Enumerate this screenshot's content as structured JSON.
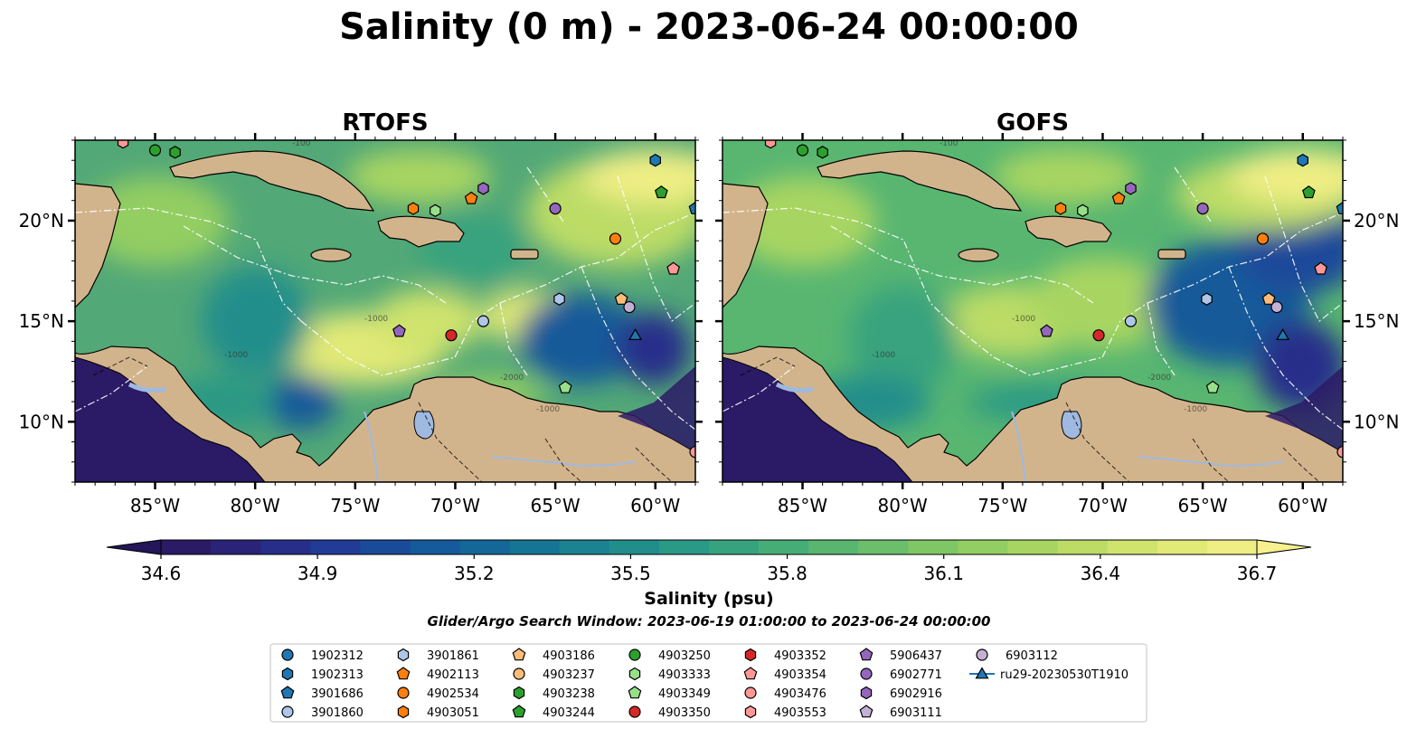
{
  "title": "Salinity (0 m) - 2023-06-24 00:00:00",
  "panels": [
    {
      "title": "RTOFS"
    },
    {
      "title": "GOFS"
    }
  ],
  "axes": {
    "lon_ticks": [
      "85°W",
      "80°W",
      "75°W",
      "70°W",
      "65°W",
      "60°W"
    ],
    "lat_ticks": [
      "20°N",
      "15°N",
      "10°N"
    ]
  },
  "colorbar": {
    "label": "Salinity (psu)",
    "ticks": [
      "34.6",
      "34.9",
      "35.2",
      "35.5",
      "35.8",
      "36.1",
      "36.4",
      "36.7"
    ],
    "colors": [
      "#2b1a66",
      "#2a2378",
      "#262e8a",
      "#213b96",
      "#1a4a9a",
      "#155a9a",
      "#136898",
      "#157594",
      "#1a8290",
      "#218e8b",
      "#2a9985",
      "#37a37e",
      "#47ad77",
      "#58b671",
      "#6bbf6a",
      "#7fc765",
      "#93ce62",
      "#a8d562",
      "#bcdc66",
      "#cfe36d",
      "#e1e977",
      "#efee84"
    ],
    "extend_low": "#231659",
    "extend_high": "#f6f08f"
  },
  "contour_labels": [
    "-1000",
    "-1000",
    "-2000",
    "-1000",
    "-100"
  ],
  "search_window": "Glider/Argo Search Window: 2023-06-19 01:00:00 to 2023-06-24 00:00:00",
  "legend": [
    {
      "label": "1902312",
      "marker": "circle",
      "color": "#1f77b4"
    },
    {
      "label": "1902313",
      "marker": "hexagon",
      "color": "#1f77b4"
    },
    {
      "label": "3901686",
      "marker": "pentagon",
      "color": "#1f77b4"
    },
    {
      "label": "3901860",
      "marker": "circle",
      "color": "#aec7e8"
    },
    {
      "label": "3901861",
      "marker": "hexagon",
      "color": "#aec7e8"
    },
    {
      "label": "4902113",
      "marker": "pentagon",
      "color": "#ff7f0e"
    },
    {
      "label": "4902534",
      "marker": "circle",
      "color": "#ff7f0e"
    },
    {
      "label": "4903051",
      "marker": "hexagon",
      "color": "#ff7f0e"
    },
    {
      "label": "4903186",
      "marker": "pentagon",
      "color": "#ffbb78"
    },
    {
      "label": "4903237",
      "marker": "circle",
      "color": "#ffbb78"
    },
    {
      "label": "4903238",
      "marker": "hexagon",
      "color": "#2ca02c"
    },
    {
      "label": "4903244",
      "marker": "pentagon",
      "color": "#2ca02c"
    },
    {
      "label": "4903250",
      "marker": "circle",
      "color": "#2ca02c"
    },
    {
      "label": "4903333",
      "marker": "hexagon",
      "color": "#98df8a"
    },
    {
      "label": "4903349",
      "marker": "pentagon",
      "color": "#98df8a"
    },
    {
      "label": "4903350",
      "marker": "circle",
      "color": "#d62728"
    },
    {
      "label": "4903352",
      "marker": "hexagon",
      "color": "#d62728"
    },
    {
      "label": "4903354",
      "marker": "pentagon",
      "color": "#ff9896"
    },
    {
      "label": "4903476",
      "marker": "circle",
      "color": "#ff9896"
    },
    {
      "label": "4903553",
      "marker": "hexagon",
      "color": "#ff9896"
    },
    {
      "label": "5906437",
      "marker": "pentagon",
      "color": "#9467bd"
    },
    {
      "label": "6902771",
      "marker": "circle",
      "color": "#9467bd"
    },
    {
      "label": "6902916",
      "marker": "hexagon",
      "color": "#9467bd"
    },
    {
      "label": "6903111",
      "marker": "pentagon",
      "color": "#c5b0d5"
    },
    {
      "label": "6903112",
      "marker": "circle",
      "color": "#c5b0d5"
    },
    {
      "label": "ru29-20230530T1910",
      "marker": "line-triangle",
      "color": "#1f77b4"
    }
  ],
  "float_positions": [
    {
      "id": "4903250",
      "lon": -85.0,
      "lat": 23.5
    },
    {
      "id": "4903238",
      "lon": -84.0,
      "lat": 23.4
    },
    {
      "id": "4903553",
      "lon": -86.6,
      "lat": 23.9
    },
    {
      "id": "1902313",
      "lon": -60.0,
      "lat": 23.0
    },
    {
      "id": "4903244",
      "lon": -59.7,
      "lat": 21.4
    },
    {
      "id": "6902916",
      "lon": -68.6,
      "lat": 21.6
    },
    {
      "id": "4902113",
      "lon": -69.2,
      "lat": 21.1
    },
    {
      "id": "4903051",
      "lon": -72.1,
      "lat": 20.6
    },
    {
      "id": "4903333",
      "lon": -71.0,
      "lat": 20.5
    },
    {
      "id": "6902771",
      "lon": -65.0,
      "lat": 20.6
    },
    {
      "id": "4902534",
      "lon": -62.0,
      "lat": 19.1
    },
    {
      "id": "4903354",
      "lon": -59.1,
      "lat": 17.6
    },
    {
      "id": "3901686",
      "lon": -58.0,
      "lat": 20.6
    },
    {
      "id": "3901861",
      "lon": -64.8,
      "lat": 16.1
    },
    {
      "id": "4903186",
      "lon": -61.7,
      "lat": 16.1
    },
    {
      "id": "6903112",
      "lon": -61.3,
      "lat": 15.7
    },
    {
      "id": "3901860",
      "lon": -68.6,
      "lat": 15.0
    },
    {
      "id": "5906437",
      "lon": -72.8,
      "lat": 14.5
    },
    {
      "id": "4903350",
      "lon": -70.2,
      "lat": 14.3
    },
    {
      "id": "4903349",
      "lon": -64.5,
      "lat": 11.7
    },
    {
      "id": "4903476",
      "lon": -58.0,
      "lat": 8.5
    }
  ],
  "glider_track": {
    "id": "ru29-20230530T1910",
    "lon": -61.0,
    "lat": 14.3
  }
}
